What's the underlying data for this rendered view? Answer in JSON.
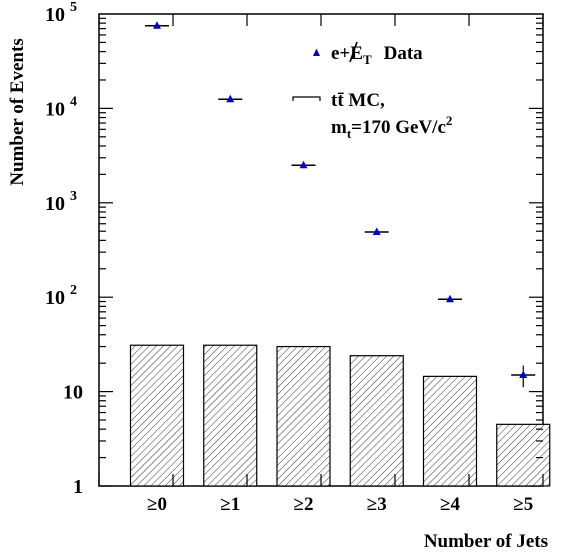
{
  "chart_data": {
    "type": "bar",
    "xlabel": "Number of Jets",
    "ylabel": "Number of Events",
    "yscale": "log",
    "ylim": [
      1,
      100000
    ],
    "categories": [
      "≥0",
      "≥1",
      "≥2",
      "≥3",
      "≥4",
      "≥5"
    ],
    "y_ticks": [
      {
        "value": 1,
        "base": "1",
        "exp": ""
      },
      {
        "value": 10,
        "base": "10",
        "exp": ""
      },
      {
        "value": 100,
        "base": "10",
        "exp": "2"
      },
      {
        "value": 1000,
        "base": "10",
        "exp": "3"
      },
      {
        "value": 10000,
        "base": "10",
        "exp": "4"
      },
      {
        "value": 100000,
        "base": "10",
        "exp": "5"
      }
    ],
    "series": [
      {
        "name": "e+E̸T Data",
        "type": "scatter",
        "marker": "triangle",
        "color": "#0000cc",
        "values": [
          75000,
          12500,
          2500,
          490,
          95,
          15
        ]
      },
      {
        "name": "tt̄ MC, mt=170 GeV/c2",
        "type": "bar",
        "hatch": "diagonal",
        "values": [
          31,
          31,
          30,
          24,
          14.5,
          4.5
        ]
      }
    ],
    "legend": {
      "position": "top-right",
      "data_label_parts": {
        "main": "e+",
        "met": "E",
        "sub": "T",
        "tail": "Data"
      },
      "mc_label_parts": {
        "line1": "tt̄  MC,",
        "m": "m",
        "msub": "t",
        "mtail": "=170 GeV/c",
        "msup": "2"
      }
    }
  }
}
